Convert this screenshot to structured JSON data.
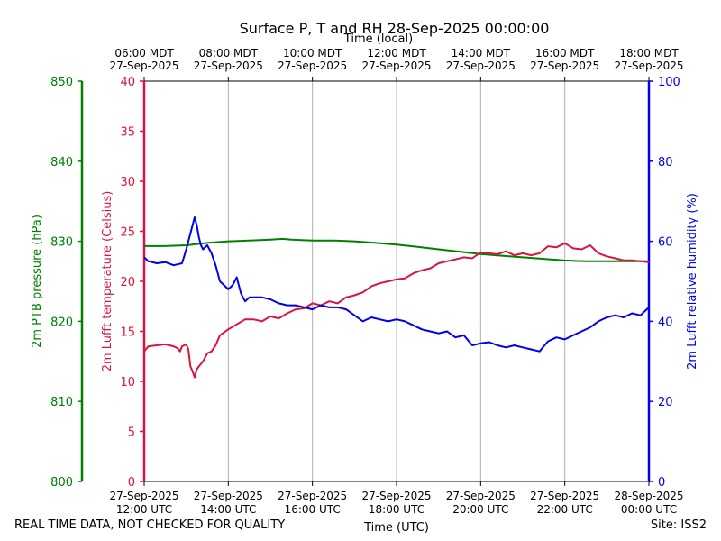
{
  "footer": {
    "left": "REAL TIME DATA, NOT CHECKED FOR QUALITY",
    "right": "Site: ISS2"
  },
  "colors": {
    "pressure": "#008000",
    "temperature": "#dc143c",
    "humidity": "#0000ee",
    "grid": "#b0b0b0",
    "text": "#000000"
  },
  "chart_data": {
    "type": "line",
    "title": "Surface P, T and RH 28-Sep-2025 00:00:00",
    "xlabel": "Time (UTC)",
    "x2label": "Time (local)",
    "x_unit": "hours since 27-Sep-2025 12:00 UTC",
    "xlim": [
      0,
      12
    ],
    "x_ticks": [
      0,
      2,
      4,
      6,
      8,
      10,
      12
    ],
    "x_tick_labels_bottom": [
      [
        "27-Sep-2025",
        "12:00 UTC"
      ],
      [
        "27-Sep-2025",
        "14:00 UTC"
      ],
      [
        "27-Sep-2025",
        "16:00 UTC"
      ],
      [
        "27-Sep-2025",
        "18:00 UTC"
      ],
      [
        "27-Sep-2025",
        "20:00 UTC"
      ],
      [
        "27-Sep-2025",
        "22:00 UTC"
      ],
      [
        "28-Sep-2025",
        "00:00 UTC"
      ]
    ],
    "x_tick_labels_top": [
      [
        "06:00 MDT",
        "27-Sep-2025"
      ],
      [
        "08:00 MDT",
        "27-Sep-2025"
      ],
      [
        "10:00 MDT",
        "27-Sep-2025"
      ],
      [
        "12:00 MDT",
        "27-Sep-2025"
      ],
      [
        "14:00 MDT",
        "27-Sep-2025"
      ],
      [
        "16:00 MDT",
        "27-Sep-2025"
      ],
      [
        "18:00 MDT",
        "27-Sep-2025"
      ]
    ],
    "axes": {
      "pressure": {
        "label": "2m PTB pressure (hPa)",
        "ylim": [
          800,
          850
        ],
        "ticks": [
          800,
          810,
          820,
          830,
          840,
          850
        ]
      },
      "temperature": {
        "label": "2m Lufft temperature (Celsius)",
        "ylim": [
          0,
          40
        ],
        "ticks": [
          0,
          5,
          10,
          15,
          20,
          25,
          30,
          35,
          40
        ]
      },
      "humidity": {
        "label": "2m Lufft relative humidity (%)",
        "ylim": [
          0,
          100
        ],
        "ticks": [
          0,
          20,
          40,
          60,
          80,
          100
        ]
      }
    },
    "series": [
      {
        "name": "2m PTB pressure",
        "axis": "pressure",
        "x": [
          0,
          0.5,
          1.0,
          1.5,
          2.0,
          2.5,
          3.0,
          3.3,
          3.5,
          4.0,
          4.5,
          5.0,
          5.5,
          6.0,
          6.5,
          7.0,
          7.5,
          8.0,
          8.5,
          9.0,
          9.5,
          10.0,
          10.5,
          11.0,
          11.5,
          12.0
        ],
        "y": [
          829.4,
          829.4,
          829.5,
          829.8,
          830.0,
          830.1,
          830.2,
          830.3,
          830.2,
          830.1,
          830.1,
          830.0,
          829.8,
          829.6,
          829.3,
          829.0,
          828.7,
          828.4,
          828.2,
          828.0,
          827.8,
          827.6,
          827.5,
          827.5,
          827.5,
          827.5
        ]
      },
      {
        "name": "2m Lufft temperature",
        "axis": "temperature",
        "x": [
          0,
          0.1,
          0.3,
          0.5,
          0.7,
          0.8,
          0.85,
          0.9,
          1.0,
          1.05,
          1.1,
          1.15,
          1.2,
          1.25,
          1.3,
          1.4,
          1.5,
          1.6,
          1.7,
          1.8,
          2.0,
          2.2,
          2.4,
          2.6,
          2.8,
          3.0,
          3.2,
          3.4,
          3.6,
          3.8,
          4.0,
          4.2,
          4.4,
          4.6,
          4.8,
          5.0,
          5.2,
          5.4,
          5.6,
          5.8,
          6.0,
          6.2,
          6.4,
          6.6,
          6.8,
          7.0,
          7.2,
          7.4,
          7.6,
          7.8,
          8.0,
          8.2,
          8.4,
          8.6,
          8.8,
          9.0,
          9.2,
          9.4,
          9.6,
          9.8,
          10.0,
          10.2,
          10.4,
          10.6,
          10.8,
          11.0,
          11.2,
          11.4,
          11.6,
          11.8,
          12.0
        ],
        "y": [
          13.0,
          13.5,
          13.6,
          13.7,
          13.5,
          13.3,
          13.0,
          13.5,
          13.7,
          13.2,
          11.5,
          11.0,
          10.4,
          11.2,
          11.5,
          12.0,
          12.8,
          13.0,
          13.6,
          14.6,
          15.2,
          15.7,
          16.2,
          16.2,
          16.0,
          16.5,
          16.3,
          16.8,
          17.2,
          17.3,
          17.8,
          17.6,
          18.0,
          17.8,
          18.4,
          18.6,
          18.9,
          19.5,
          19.8,
          20.0,
          20.2,
          20.3,
          20.8,
          21.1,
          21.3,
          21.8,
          22.0,
          22.2,
          22.4,
          22.3,
          22.9,
          22.8,
          22.7,
          23.0,
          22.6,
          22.8,
          22.6,
          22.8,
          23.5,
          23.4,
          23.8,
          23.3,
          23.2,
          23.6,
          22.8,
          22.5,
          22.3,
          22.1,
          22.1,
          22.0,
          21.9
        ]
      },
      {
        "name": "2m Lufft relative humidity",
        "axis": "humidity",
        "x": [
          0,
          0.1,
          0.3,
          0.5,
          0.7,
          0.9,
          1.0,
          1.05,
          1.1,
          1.2,
          1.25,
          1.3,
          1.35,
          1.4,
          1.5,
          1.6,
          1.7,
          1.8,
          1.9,
          2.0,
          2.1,
          2.2,
          2.3,
          2.4,
          2.5,
          2.6,
          2.8,
          3.0,
          3.2,
          3.4,
          3.6,
          3.8,
          4.0,
          4.2,
          4.4,
          4.6,
          4.8,
          5.0,
          5.2,
          5.4,
          5.6,
          5.8,
          6.0,
          6.2,
          6.4,
          6.6,
          6.8,
          7.0,
          7.2,
          7.4,
          7.6,
          7.8,
          8.0,
          8.2,
          8.4,
          8.6,
          8.8,
          9.0,
          9.2,
          9.4,
          9.6,
          9.8,
          10.0,
          10.2,
          10.4,
          10.6,
          10.8,
          11.0,
          11.2,
          11.4,
          11.6,
          11.8,
          12.0
        ],
        "y": [
          56.0,
          55.0,
          54.5,
          54.8,
          54.0,
          54.5,
          58.0,
          60.0,
          62.0,
          66.0,
          64.0,
          61.0,
          59.0,
          58.0,
          59.0,
          57.0,
          54.0,
          50.0,
          49.0,
          48.0,
          49.0,
          51.0,
          47.0,
          45.0,
          46.0,
          46.0,
          46.0,
          45.5,
          44.5,
          44.0,
          44.0,
          43.5,
          43.0,
          44.0,
          43.5,
          43.5,
          43.0,
          41.5,
          40.0,
          41.0,
          40.5,
          40.0,
          40.5,
          40.0,
          39.0,
          38.0,
          37.5,
          37.0,
          37.5,
          36.0,
          36.5,
          34.0,
          34.5,
          34.8,
          34.0,
          33.5,
          34.0,
          33.5,
          33.0,
          32.5,
          35.0,
          36.0,
          35.5,
          36.5,
          37.5,
          38.5,
          40.0,
          41.0,
          41.5,
          41.0,
          42.0,
          41.5,
          43.5
        ]
      }
    ]
  }
}
